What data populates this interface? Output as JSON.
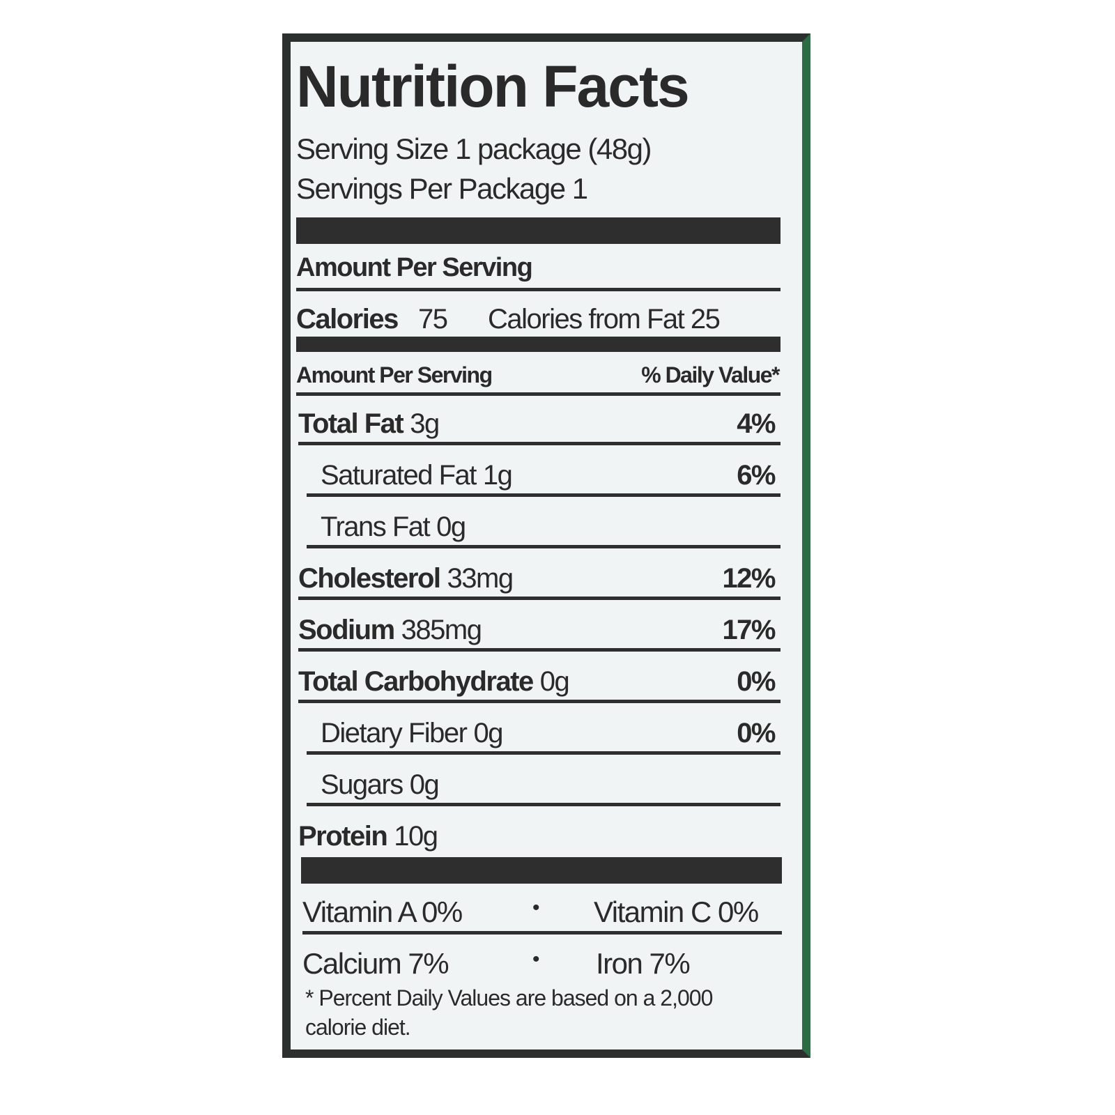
{
  "title": "Nutrition Facts",
  "serving_size": "Serving Size 1 package (48g)",
  "servings_per_package": "Servings Per Package 1",
  "amount_header": "Amount Per Serving",
  "calories": {
    "label": "Calories",
    "value": "75"
  },
  "calories_from_fat": "Calories from Fat 25",
  "daily_value_header": {
    "left": "Amount Per Serving",
    "right": "% Daily Value*"
  },
  "nutrients": [
    {
      "name": "Total Fat",
      "amount": "3g",
      "dv": "4%",
      "sub": [
        {
          "name": "Saturated Fat",
          "amount": "1g",
          "dv": "6%"
        },
        {
          "name": "Trans Fat",
          "amount": "0g"
        }
      ]
    },
    {
      "name": "Cholesterol",
      "amount": "33mg",
      "dv": "12%"
    },
    {
      "name": "Sodium",
      "amount": "385mg",
      "dv": "17%"
    },
    {
      "name": "Total Carbohydrate",
      "amount": "0g",
      "dv": "0%",
      "sub": [
        {
          "name": "Dietary Fiber",
          "amount": "0g",
          "dv": "0%"
        },
        {
          "name": "Sugars",
          "amount": "0g"
        }
      ]
    },
    {
      "name": "Protein",
      "amount": "10g"
    }
  ],
  "vitamins": [
    [
      "Vitamin A 0%",
      "Vitamin C 0%"
    ],
    [
      "Calcium 7%",
      "Iron 7%"
    ]
  ],
  "footnote": "* Percent Daily Values are based on a 2,000 calorie diet."
}
